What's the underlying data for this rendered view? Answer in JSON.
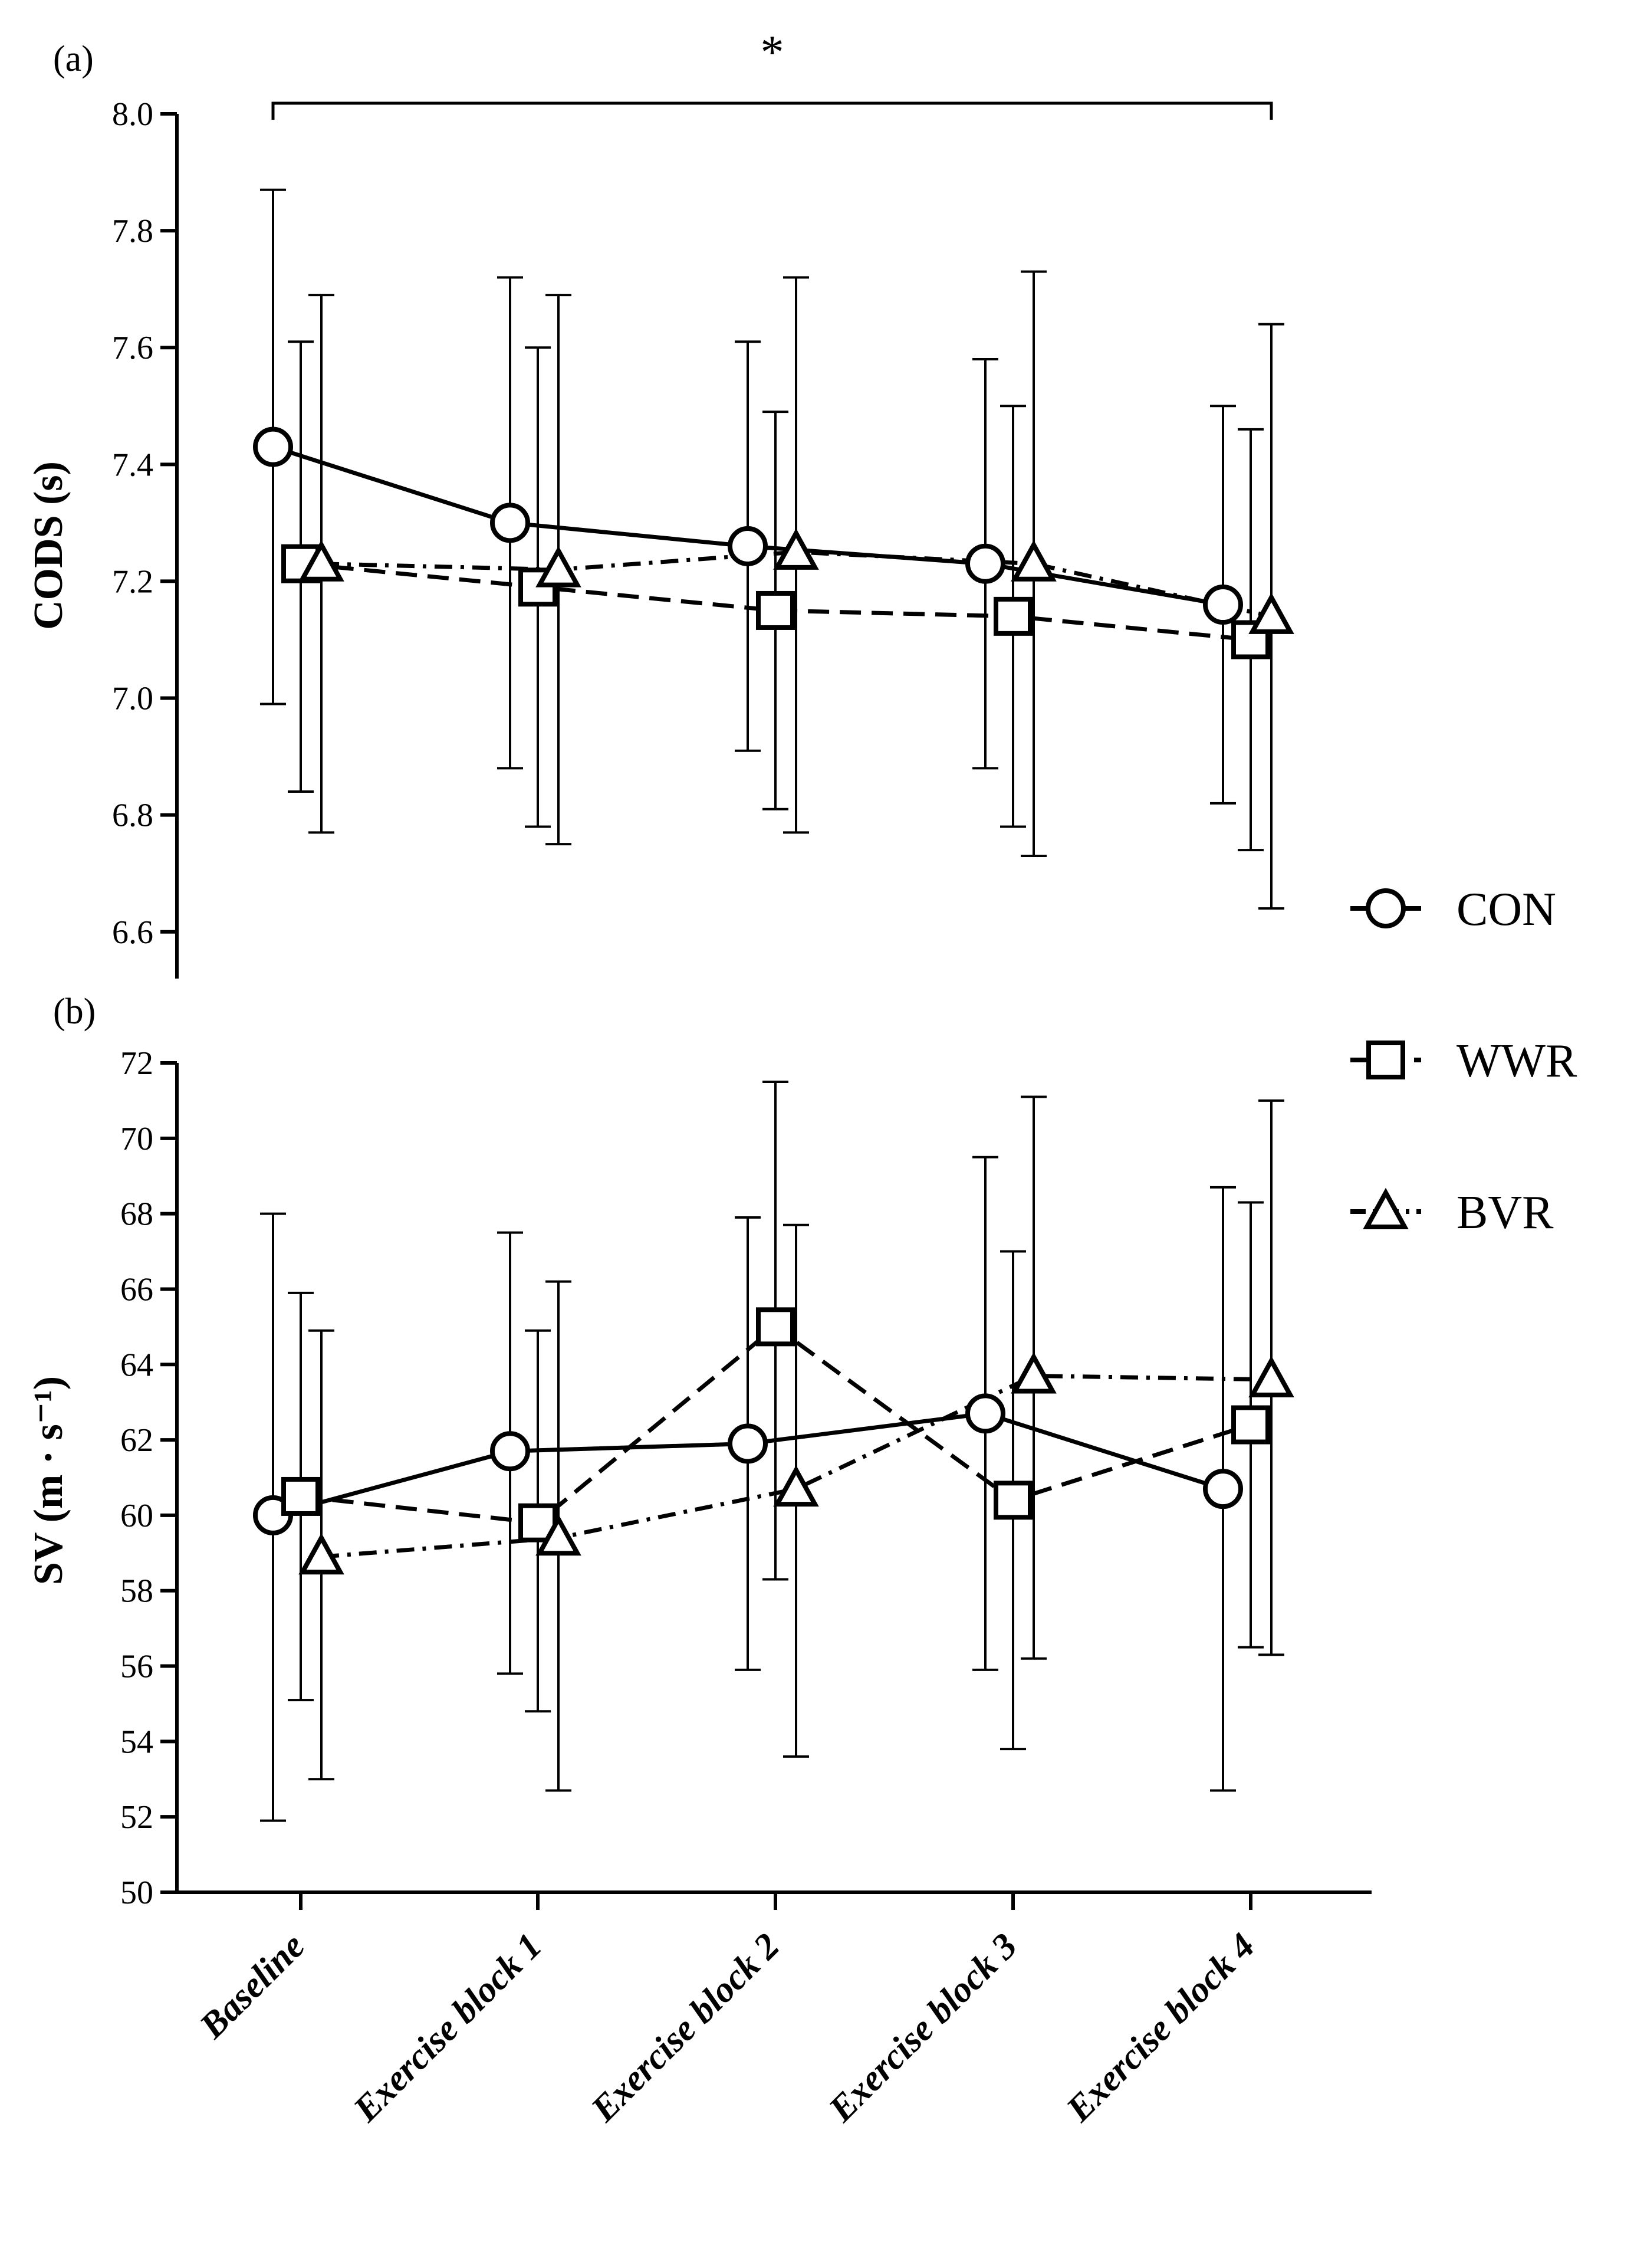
{
  "chart_data": [
    {
      "type": "line",
      "panel_label": "(a)",
      "ylabel": "CODS (s)",
      "ylim": [
        6.52,
        8.0
      ],
      "yticks": [
        6.6,
        6.8,
        7.0,
        7.2,
        7.4,
        7.6,
        7.8,
        8.0
      ],
      "ytick_labels": [
        "6.6",
        "6.8",
        "7.0",
        "7.2",
        "7.4",
        "7.6",
        "7.8",
        "8.0"
      ],
      "categories": [
        "Baseline",
        "Exercise block 1",
        "Exercise block 2",
        "Exercise block 3",
        "Exercise block 4"
      ],
      "significance": {
        "symbol": "*",
        "from": "Baseline",
        "to": "Exercise block 4"
      },
      "grid": false,
      "series": [
        {
          "name": "CON",
          "marker": "circle",
          "line": "solid",
          "values": [
            7.43,
            7.3,
            7.26,
            7.23,
            7.16
          ],
          "err_low": [
            6.99,
            6.88,
            6.91,
            6.88,
            6.82
          ],
          "err_high": [
            7.87,
            7.72,
            7.61,
            7.58,
            7.5
          ]
        },
        {
          "name": "WWR",
          "marker": "square",
          "line": "dashed",
          "values": [
            7.23,
            7.19,
            7.15,
            7.14,
            7.1
          ],
          "err_low": [
            6.84,
            6.78,
            6.81,
            6.78,
            6.74
          ],
          "err_high": [
            7.61,
            7.6,
            7.49,
            7.5,
            7.46
          ]
        },
        {
          "name": "BVR",
          "marker": "triangle",
          "line": "dashdot",
          "values": [
            7.23,
            7.22,
            7.25,
            7.23,
            7.14
          ],
          "err_low": [
            6.77,
            6.75,
            6.77,
            6.73,
            6.64
          ],
          "err_high": [
            7.69,
            7.69,
            7.72,
            7.73,
            7.64
          ]
        }
      ]
    },
    {
      "type": "line",
      "panel_label": "(b)",
      "ylabel": "SV (m · s⁻¹)",
      "ylim": [
        50,
        72
      ],
      "yticks": [
        50,
        52,
        54,
        56,
        58,
        60,
        62,
        64,
        66,
        68,
        70,
        72
      ],
      "ytick_labels": [
        "50",
        "52",
        "54",
        "56",
        "58",
        "60",
        "62",
        "64",
        "66",
        "68",
        "70",
        "72"
      ],
      "categories": [
        "Baseline",
        "Exercise block 1",
        "Exercise block 2",
        "Exercise block 3",
        "Exercise block 4"
      ],
      "grid": false,
      "series": [
        {
          "name": "CON",
          "marker": "circle",
          "line": "solid",
          "values": [
            60.0,
            61.7,
            61.9,
            62.7,
            60.7
          ],
          "err_low": [
            51.9,
            55.8,
            55.9,
            55.9,
            52.7
          ],
          "err_high": [
            68.0,
            67.5,
            67.9,
            69.5,
            68.7
          ]
        },
        {
          "name": "WWR",
          "marker": "square",
          "line": "dashed",
          "values": [
            60.5,
            59.8,
            65.0,
            60.4,
            62.4
          ],
          "err_low": [
            55.1,
            54.8,
            58.3,
            53.8,
            56.5
          ],
          "err_high": [
            65.9,
            64.9,
            71.5,
            67.0,
            68.3
          ]
        },
        {
          "name": "BVR",
          "marker": "triangle",
          "line": "dashdot",
          "values": [
            58.9,
            59.4,
            60.7,
            63.7,
            63.6
          ],
          "err_low": [
            53.0,
            52.7,
            53.6,
            56.2,
            56.3
          ],
          "err_high": [
            64.9,
            66.2,
            67.7,
            71.1,
            71.0
          ]
        }
      ]
    }
  ],
  "legend": {
    "placement": "right",
    "entries": [
      {
        "label": "CON",
        "marker": "circle",
        "line": "solid"
      },
      {
        "label": "WWR",
        "marker": "square",
        "line": "dashed"
      },
      {
        "label": "BVR",
        "marker": "triangle",
        "line": "dashdot"
      }
    ]
  }
}
